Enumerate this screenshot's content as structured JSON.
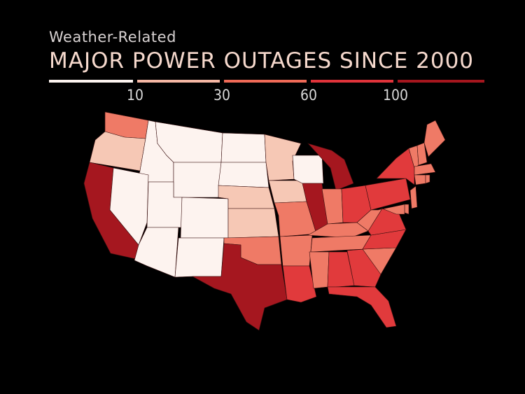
{
  "header": {
    "subtitle": "Weather-Related",
    "title": "MAJOR POWER OUTAGES SINCE 2000"
  },
  "legend": {
    "ticks": [
      "10",
      "30",
      "60",
      "100"
    ],
    "colors": [
      "#fdf3ef",
      "#f5b7a4",
      "#ef6a57",
      "#e0333a",
      "#a5161e"
    ]
  },
  "map": {
    "classes": {
      "c1": "#fdf3ef",
      "c2": "#f6c8b5",
      "c3": "#ef7a66",
      "c4": "#e13a3c",
      "c5": "#a5171f"
    },
    "states": {
      "WA": "c3",
      "OR": "c2",
      "CA": "c5",
      "ID": "c1",
      "NV": "c1",
      "MT": "c1",
      "WY": "c1",
      "UT": "c1",
      "AZ": "c1",
      "CO": "c1",
      "NM": "c1",
      "ND": "c1",
      "SD": "c1",
      "NE": "c2",
      "KS": "c2",
      "OK": "c3",
      "TX": "c5",
      "MN": "c2",
      "IA": "c2",
      "MO": "c3",
      "AR": "c3",
      "LA": "c4",
      "WI": "c1",
      "IL": "c5",
      "MI": "c5",
      "IN": "c3",
      "OH": "c4",
      "KY": "c3",
      "TN": "c3",
      "MS": "c3",
      "AL": "c4",
      "GA": "c4",
      "FL": "c4",
      "SC": "c3",
      "NC": "c4",
      "VA": "c4",
      "WV": "c3",
      "PA": "c4",
      "NY": "c4",
      "VT": "c3",
      "NH": "c3",
      "ME": "c3",
      "MA": "c3",
      "CT": "c3",
      "RI": "c3",
      "NJ": "c3",
      "DE": "c3",
      "MD": "c3"
    }
  }
}
